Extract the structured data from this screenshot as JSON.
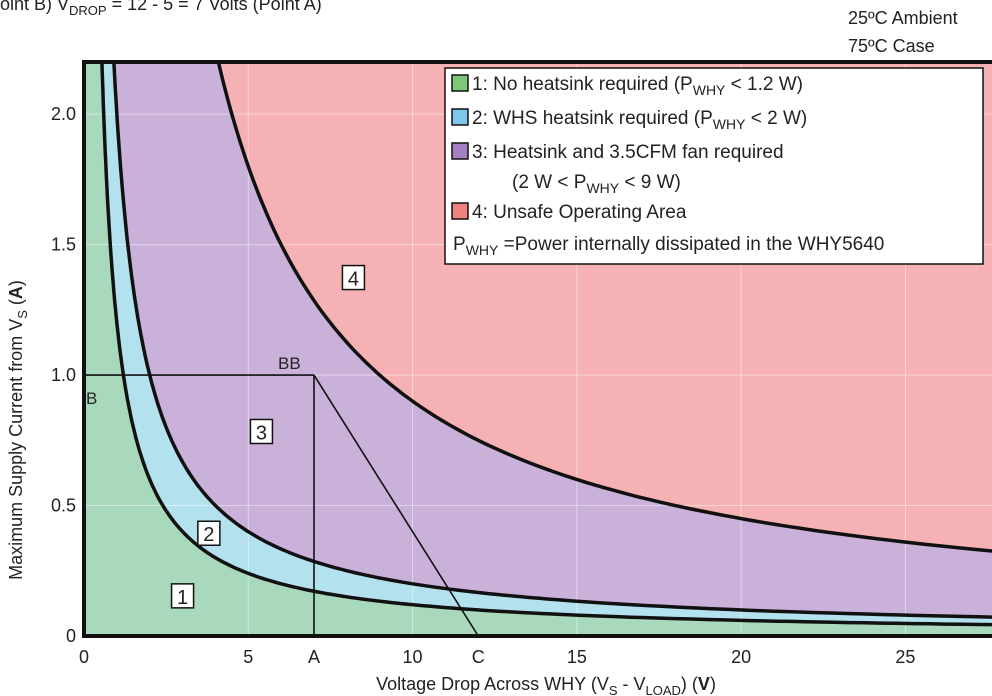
{
  "header": {
    "partial_text": "oint B)        V",
    "partial_sub": "DROP",
    "partial_rest": " = 12 - 5 = 7 Volts (Point A)",
    "ambient": "25ºC Ambient",
    "case": "75ºC Case"
  },
  "chart_data": {
    "type": "area",
    "xlabel_main": "Voltage Drop Across WHY (V",
    "xlabel_s": "S",
    "xlabel_mid": " - V",
    "xlabel_load": "LOAD",
    "xlabel_end": ") (",
    "xlabel_unit": "V",
    "xlabel_close": ")",
    "ylabel_main": "Maximum Supply Current from V",
    "ylabel_s": "S",
    "ylabel_mid": " (",
    "ylabel_unit": "A",
    "ylabel_close": ")",
    "xlim": [
      0,
      28
    ],
    "ylim": [
      0,
      2.2
    ],
    "x_ticks": [
      {
        "value": 0,
        "label": "0"
      },
      {
        "value": 5,
        "label": "5"
      },
      {
        "value": 7,
        "label": "A"
      },
      {
        "value": 10,
        "label": "10"
      },
      {
        "value": 12,
        "label": "C"
      },
      {
        "value": 15,
        "label": "15"
      },
      {
        "value": 20,
        "label": "20"
      },
      {
        "value": 25,
        "label": "25"
      }
    ],
    "y_ticks": [
      {
        "value": 0,
        "label": "0"
      },
      {
        "value": 0.5,
        "label": "0.5"
      },
      {
        "value": 1.0,
        "label": "1.0"
      },
      {
        "value": 1.5,
        "label": "1.5"
      },
      {
        "value": 2.0,
        "label": "2.0"
      }
    ],
    "grid": true,
    "boundaries": [
      {
        "id": "p1",
        "power_w": 1.2
      },
      {
        "id": "p2",
        "power_w": 2
      },
      {
        "id": "p9",
        "power_w": 9
      }
    ],
    "regions": [
      {
        "id": "r1",
        "marker": "1",
        "color": "#a9d9bd",
        "marker_at": [
          3,
          0.15
        ]
      },
      {
        "id": "r2",
        "marker": "2",
        "color": "#b4e1ee",
        "marker_at": [
          3.8,
          0.39
        ]
      },
      {
        "id": "r3",
        "marker": "3",
        "color": "#c9b1d9",
        "marker_at": [
          5.4,
          0.78
        ]
      },
      {
        "id": "r4",
        "marker": "4",
        "color": "#f5b1b3",
        "marker_at": [
          8.2,
          1.37
        ]
      }
    ],
    "load_line": [
      {
        "label": "B",
        "x": 0,
        "y": 1.0
      },
      {
        "label": "BB",
        "x": 7,
        "y": 1.0
      },
      {
        "label": "A",
        "x": 7,
        "y": 0
      },
      {
        "label": "C",
        "x": 12,
        "y": 0
      }
    ],
    "point_labels": {
      "b": "B",
      "bb": "BB"
    },
    "legend": {
      "placement": "top-right",
      "items": [
        {
          "swatch": "#7dc77a",
          "num": "1:",
          "text_a": "No heatsink required (P",
          "sub": "WHY",
          "text_b": " < 1.2 W)"
        },
        {
          "swatch": "#7ec8ea",
          "num": "2:",
          "text_a": "WHS heatsink required (P",
          "sub": "WHY",
          "text_b": " < 2 W)"
        },
        {
          "swatch": "#a47fc1",
          "num": "3:",
          "text_a": "Heatsink and 3.5CFM fan required",
          "sub": "",
          "text_b": ""
        },
        {
          "swatch": "",
          "num": "",
          "text_a": "(2 W < P",
          "sub": "WHY",
          "text_b": " < 9 W)"
        },
        {
          "swatch": "#ef8080",
          "num": "4:",
          "text_a": "Unsafe Operating Area",
          "sub": "",
          "text_b": ""
        }
      ],
      "footnote_a": "P",
      "footnote_sub": "WHY",
      "footnote_b": " =Power internally dissipated in the WHY5640"
    }
  }
}
